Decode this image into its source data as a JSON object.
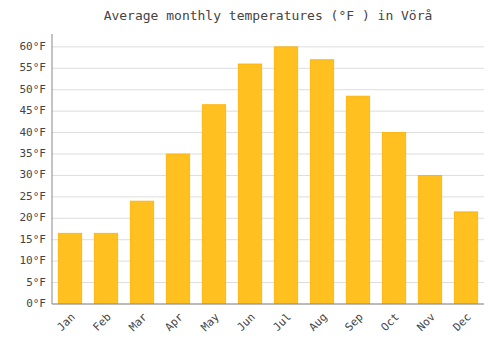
{
  "chart_data": {
    "type": "bar",
    "title": "Average monthly temperatures (°F ) in Vörå",
    "categories": [
      "Jan",
      "Feb",
      "Mar",
      "Apr",
      "May",
      "Jun",
      "Jul",
      "Aug",
      "Sep",
      "Oct",
      "Nov",
      "Dec"
    ],
    "values": [
      16.5,
      16.5,
      24,
      35,
      46.5,
      56,
      60,
      57,
      48.5,
      40,
      30,
      21.5
    ],
    "color": "#FFC020",
    "ylim": [
      0,
      63
    ],
    "yticks": [
      {
        "value": 0,
        "label": "0°F"
      },
      {
        "value": 5,
        "label": "5°F"
      },
      {
        "value": 10,
        "label": "10°F"
      },
      {
        "value": 15,
        "label": "15°F"
      },
      {
        "value": 20,
        "label": "20°F"
      },
      {
        "value": 25,
        "label": "25°F"
      },
      {
        "value": 30,
        "label": "30°F"
      },
      {
        "value": 35,
        "label": "35°F"
      },
      {
        "value": 40,
        "label": "40°F"
      },
      {
        "value": 45,
        "label": "45°F"
      },
      {
        "value": 50,
        "label": "50°F"
      },
      {
        "value": 55,
        "label": "55°F"
      },
      {
        "value": 60,
        "label": "60°F"
      }
    ],
    "grid": true
  }
}
